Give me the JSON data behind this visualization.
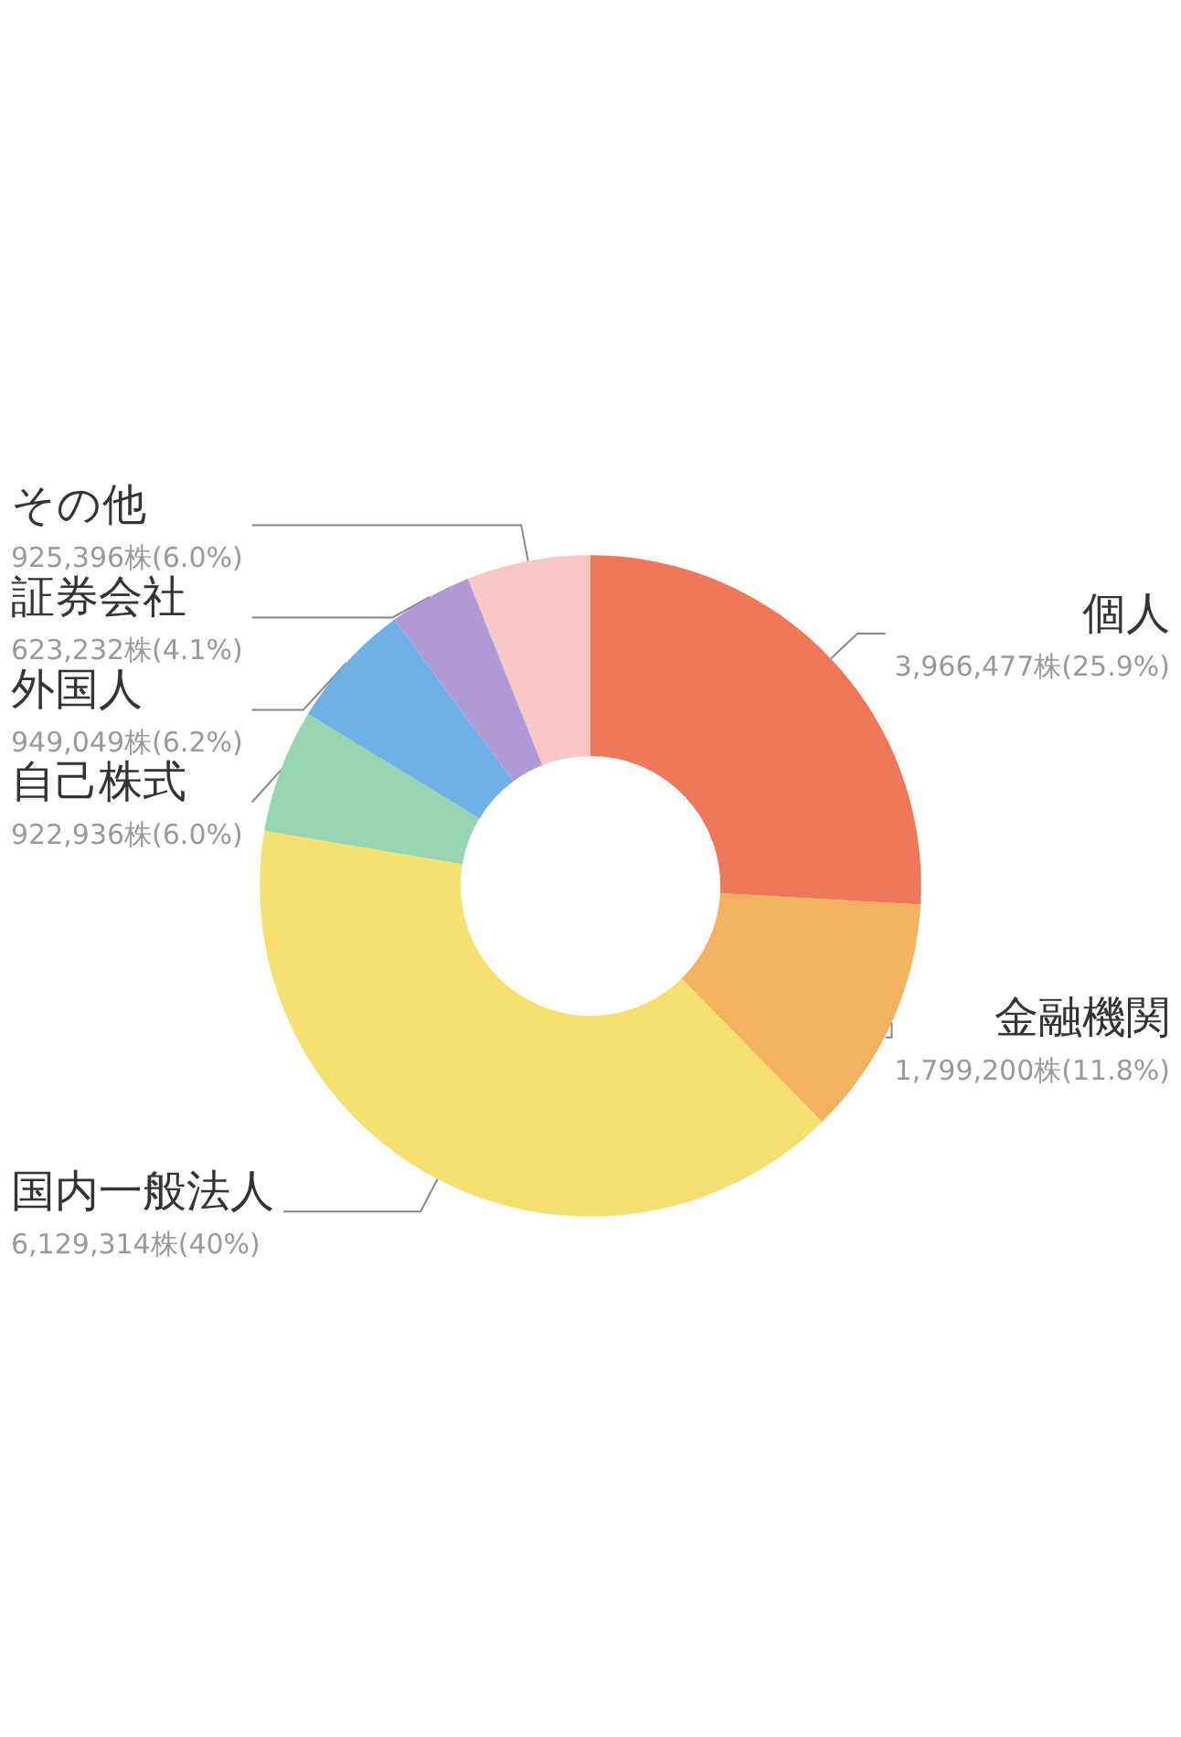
{
  "chart_data": {
    "type": "donut",
    "categories": [
      "個人",
      "金融機関",
      "国内一般法人",
      "自己株式",
      "外国人",
      "証券会社",
      "その他"
    ],
    "values": [
      3966477,
      1799200,
      6129314,
      922936,
      949049,
      623232,
      925396
    ],
    "value_labels": [
      "3,966,477株(25.9%)",
      "1,799,200株(11.8%)",
      "6,129,314株(40%)",
      "922,936株(6.0%)",
      "949,049株(6.2%)",
      "623,232株(4.1%)",
      "925,396株(6.0%)"
    ],
    "colors": [
      "#ee775a",
      "#f3b262",
      "#f5e070",
      "#95d5b2",
      "#6fb0e6",
      "#b09ad6",
      "#f9c8c4"
    ],
    "legend": false
  }
}
